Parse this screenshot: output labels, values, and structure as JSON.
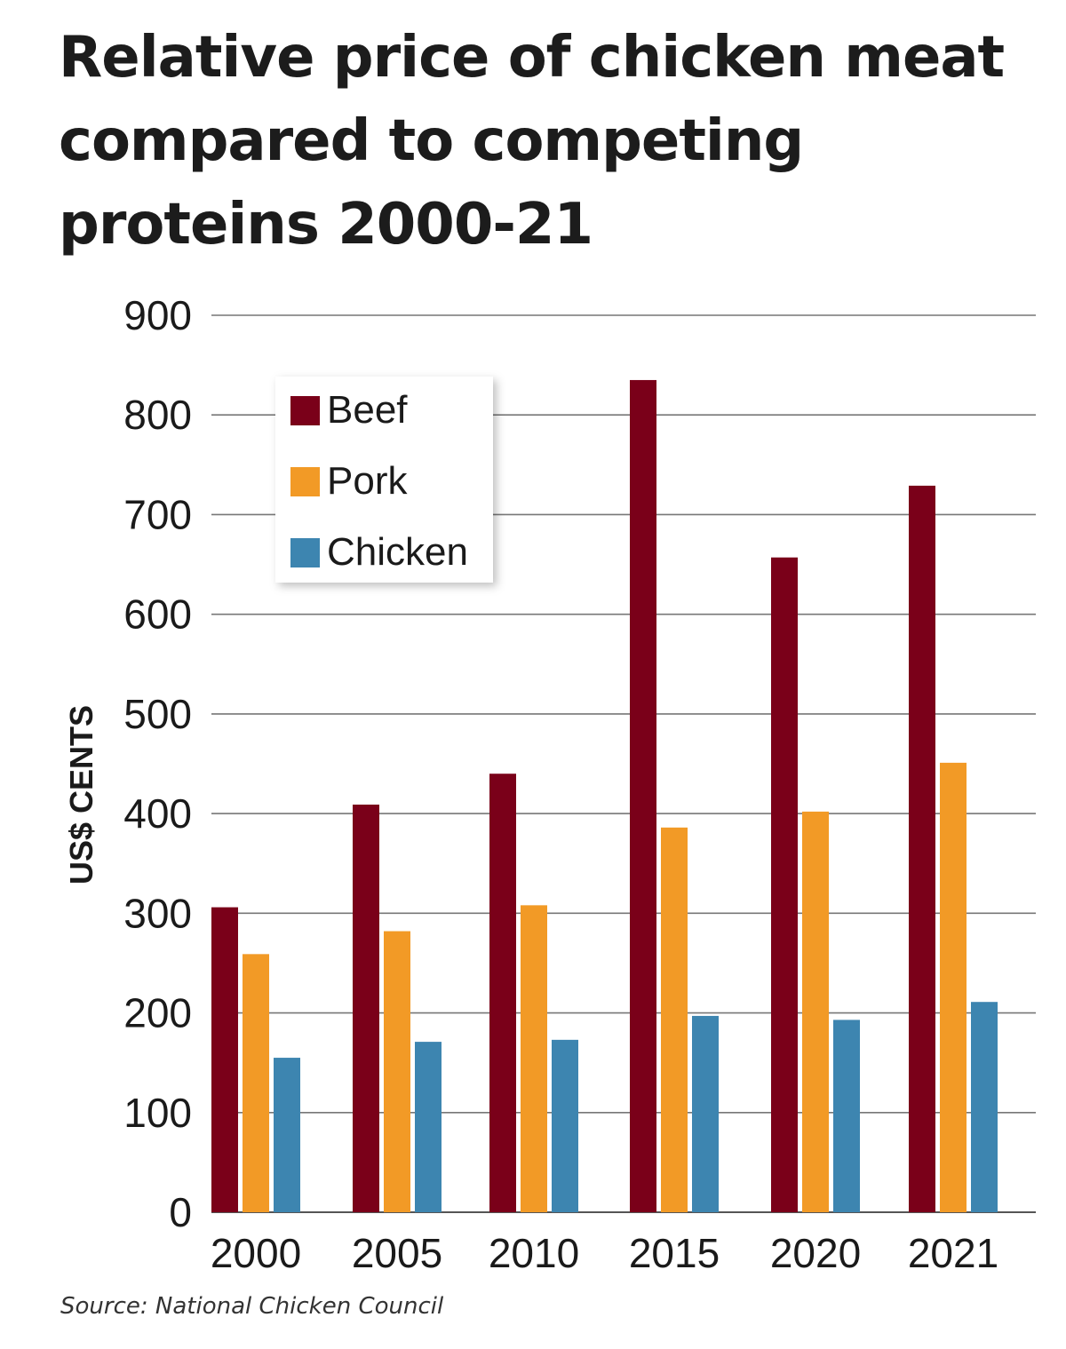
{
  "chart_data": {
    "type": "bar",
    "title": "Relative price of chicken meat compared to competing proteins 2000-21",
    "ylabel": "US$ CENTS",
    "xlabel": "",
    "categories": [
      "2000",
      "2005",
      "2010",
      "2015",
      "2020",
      "2021"
    ],
    "series": [
      {
        "name": "Beef",
        "color": "#7a0019",
        "values": [
          306,
          409,
          440,
          835,
          657,
          729
        ]
      },
      {
        "name": "Pork",
        "color": "#f29a26",
        "values": [
          259,
          282,
          308,
          386,
          402,
          451
        ]
      },
      {
        "name": "Chicken",
        "color": "#3d85b0",
        "values": [
          155,
          171,
          173,
          197,
          193,
          211
        ]
      }
    ],
    "ylim": [
      0,
      900
    ],
    "yticks": [
      "0",
      "100",
      "200",
      "300",
      "400",
      "500",
      "600",
      "700",
      "800",
      "900"
    ],
    "grid": true,
    "legend_position": "top-left"
  },
  "source": "Source: National Chicken Council"
}
